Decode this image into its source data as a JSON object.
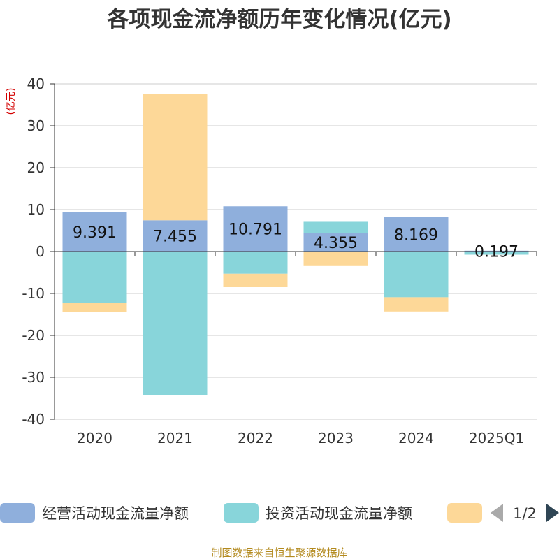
{
  "chart_data": {
    "type": "bar",
    "stacked": true,
    "title": "各项现金流净额历年变化情况(亿元)",
    "ylabel": "(亿元)",
    "ylim": [
      -40,
      40
    ],
    "yticks": [
      40,
      30,
      20,
      10,
      0,
      -10,
      -20,
      -30,
      -40
    ],
    "categories": [
      "2020",
      "2021",
      "2022",
      "2023",
      "2024",
      "2025Q1"
    ],
    "series": [
      {
        "name": "经营活动现金流量净额",
        "color": "#8fafdc",
        "values": [
          9.391,
          7.455,
          10.791,
          4.355,
          8.169,
          0.197
        ]
      },
      {
        "name": "投资活动现金流量净额",
        "color": "#88d5da",
        "values": [
          -12.2,
          -34.2,
          -5.3,
          2.9,
          -10.9,
          -0.75
        ]
      },
      {
        "name": "",
        "color": "#fdd898",
        "values": [
          -2.3,
          30.2,
          -3.2,
          -3.3,
          -3.4,
          0
        ]
      }
    ],
    "data_labels": [
      "9.391",
      "7.455",
      "10.791",
      "4.355",
      "8.169",
      "0.197"
    ],
    "legend_position": "bottom",
    "legend_pager": {
      "text": "1/2",
      "prev_color": "#aaaaaa",
      "next_color": "#2f4554"
    }
  },
  "source_note": "制图数据来自恒生聚源数据库"
}
